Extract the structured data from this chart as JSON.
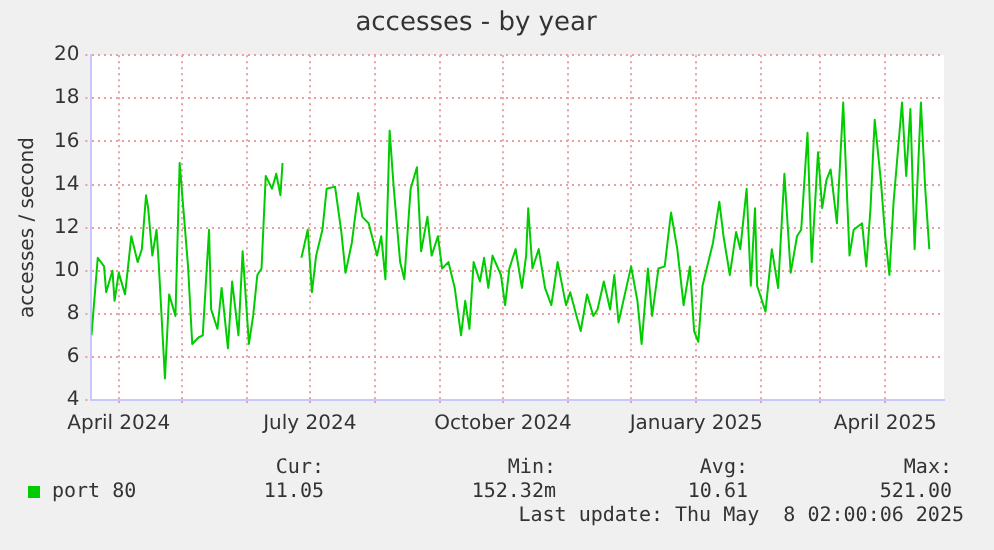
{
  "chart_data": {
    "type": "line",
    "title": "accesses - by year",
    "ylabel": "accesses / second",
    "xlim": [
      "2024-03-19",
      "2025-04-29"
    ],
    "xticks": [
      {
        "value": "2024-04-01",
        "label": "April 2024"
      },
      {
        "value": "2024-05-01",
        "label": null
      },
      {
        "value": "2024-06-01",
        "label": null
      },
      {
        "value": "2024-07-01",
        "label": "July 2024"
      },
      {
        "value": "2024-08-01",
        "label": null
      },
      {
        "value": "2024-09-01",
        "label": null
      },
      {
        "value": "2024-10-01",
        "label": "October 2024"
      },
      {
        "value": "2024-11-01",
        "label": null
      },
      {
        "value": "2024-12-01",
        "label": null
      },
      {
        "value": "2025-01-01",
        "label": "January 2025"
      },
      {
        "value": "2025-02-01",
        "label": null
      },
      {
        "value": "2025-03-01",
        "label": null
      },
      {
        "value": "2025-04-01",
        "label": "April 2025"
      }
    ],
    "ylim": [
      4,
      20
    ],
    "yticks": [
      4,
      6,
      8,
      10,
      12,
      14,
      16,
      18,
      20
    ],
    "grid": true,
    "legend": "bottom left",
    "marker": "none",
    "line_style": "solid",
    "annotations": [
      "Cur:",
      "Min:",
      "Avg:",
      "Max:",
      "11.05",
      "152.32m",
      "10.61",
      "521.00",
      "Last update: Thu May  8 02:00:06 2025"
    ],
    "series": [
      {
        "name": "port 80",
        "color": "#00cc00",
        "x": [
          "2024-03-19",
          "2024-03-22",
          "2024-03-25",
          "2024-03-26",
          "2024-03-29",
          "2024-03-30",
          "2024-04-01",
          "2024-04-04",
          "2024-04-07",
          "2024-04-10",
          "2024-04-12",
          "2024-04-14",
          "2024-04-15",
          "2024-04-17",
          "2024-04-19",
          "2024-04-20",
          "2024-04-23",
          "2024-04-25",
          "2024-04-28",
          "2024-04-30",
          "2024-05-04",
          "2024-05-06",
          "2024-05-09",
          "2024-05-11",
          "2024-05-14",
          "2024-05-15",
          "2024-05-18",
          "2024-05-20",
          "2024-05-23",
          "2024-05-25",
          "2024-05-28",
          "2024-05-30",
          "2024-06-02",
          "2024-06-04",
          "2024-06-06",
          "2024-06-08",
          "2024-06-10",
          "2024-06-13",
          "2024-06-15",
          "2024-06-17",
          "2024-06-18",
          "2024-06-22",
          "2024-06-27",
          "2024-06-30",
          "2024-07-02",
          "2024-07-04",
          "2024-07-07",
          "2024-07-09",
          "2024-07-13",
          "2024-07-16",
          "2024-07-18",
          "2024-07-21",
          "2024-07-24",
          "2024-07-26",
          "2024-07-29",
          "2024-08-02",
          "2024-08-04",
          "2024-08-06",
          "2024-08-08",
          "2024-08-10",
          "2024-08-13",
          "2024-08-15",
          "2024-08-18",
          "2024-08-21",
          "2024-08-23",
          "2024-08-26",
          "2024-08-28",
          "2024-08-31",
          "2024-09-02",
          "2024-09-05",
          "2024-09-08",
          "2024-09-11",
          "2024-09-13",
          "2024-09-15",
          "2024-09-17",
          "2024-09-20",
          "2024-09-22",
          "2024-09-24",
          "2024-09-26",
          "2024-09-30",
          "2024-10-02",
          "2024-10-04",
          "2024-10-07",
          "2024-10-10",
          "2024-10-12",
          "2024-10-13",
          "2024-10-15",
          "2024-10-18",
          "2024-10-21",
          "2024-10-24",
          "2024-10-27",
          "2024-10-31",
          "2024-11-02",
          "2024-11-05",
          "2024-11-07",
          "2024-11-10",
          "2024-11-13",
          "2024-11-15",
          "2024-11-18",
          "2024-11-21",
          "2024-11-23",
          "2024-11-25",
          "2024-11-28",
          "2024-12-01",
          "2024-12-04",
          "2024-12-06",
          "2024-12-09",
          "2024-12-11",
          "2024-12-14",
          "2024-12-17",
          "2024-12-20",
          "2024-12-23",
          "2024-12-26",
          "2024-12-29",
          "2024-12-31",
          "2025-01-02",
          "2025-01-04",
          "2025-01-06",
          "2025-01-09",
          "2025-01-12",
          "2025-01-14",
          "2025-01-17",
          "2025-01-20",
          "2025-01-22",
          "2025-01-25",
          "2025-01-27",
          "2025-01-29",
          "2025-01-30",
          "2025-02-03",
          "2025-02-06",
          "2025-02-09",
          "2025-02-12",
          "2025-02-15",
          "2025-02-18",
          "2025-02-20",
          "2025-02-23",
          "2025-02-25",
          "2025-02-28",
          "2025-03-02",
          "2025-03-04",
          "2025-03-06",
          "2025-03-09",
          "2025-03-12",
          "2025-03-15",
          "2025-03-17",
          "2025-03-21",
          "2025-03-23",
          "2025-03-25",
          "2025-03-27",
          "2025-03-30",
          "2025-04-01",
          "2025-04-03",
          "2025-04-05",
          "2025-04-09",
          "2025-04-11",
          "2025-04-13",
          "2025-04-15",
          "2025-04-18",
          "2025-04-20",
          "2025-04-22"
        ],
        "values": [
          7.0,
          10.6,
          10.2,
          9.0,
          10.0,
          8.6,
          9.9,
          8.9,
          11.6,
          10.4,
          11.0,
          13.5,
          12.9,
          10.7,
          11.9,
          10.4,
          5.0,
          8.9,
          7.9,
          15.0,
          10.2,
          6.6,
          6.9,
          7.0,
          11.9,
          8.2,
          7.3,
          9.2,
          6.4,
          9.5,
          7.0,
          10.9,
          6.6,
          7.9,
          9.8,
          10.1,
          14.4,
          13.8,
          14.5,
          13.5,
          15.0,
          null,
          10.6,
          11.9,
          9.0,
          10.7,
          11.9,
          13.8,
          13.9,
          11.8,
          9.9,
          11.3,
          13.6,
          12.5,
          12.2,
          10.7,
          11.6,
          9.6,
          16.5,
          13.8,
          10.4,
          9.6,
          13.8,
          14.8,
          10.9,
          12.5,
          10.7,
          11.6,
          10.1,
          10.4,
          9.2,
          7.0,
          8.6,
          7.3,
          10.4,
          9.5,
          10.6,
          9.2,
          10.7,
          9.8,
          8.4,
          10.1,
          11.0,
          9.2,
          10.7,
          12.9,
          10.1,
          11.0,
          9.2,
          8.4,
          10.4,
          8.4,
          9.0,
          7.9,
          7.2,
          8.9,
          7.9,
          8.2,
          9.5,
          8.2,
          9.8,
          7.6,
          8.9,
          10.2,
          8.6,
          6.6,
          10.1,
          7.9,
          10.1,
          10.2,
          12.7,
          11.0,
          8.4,
          10.2,
          7.2,
          6.7,
          9.3,
          10.1,
          11.3,
          13.2,
          11.6,
          9.8,
          11.8,
          11.0,
          13.8,
          9.3,
          12.9,
          9.3,
          8.1,
          11.0,
          9.2,
          14.5,
          9.9,
          11.6,
          11.9,
          16.4,
          10.4,
          15.5,
          12.9,
          14.2,
          14.7,
          12.2,
          17.8,
          10.7,
          11.9,
          12.2,
          10.2,
          12.9,
          17.0,
          14.1,
          11.6,
          9.8,
          13.2,
          17.8,
          14.4,
          17.5,
          11.0,
          17.8,
          13.9,
          11.0
        ]
      }
    ]
  }
}
